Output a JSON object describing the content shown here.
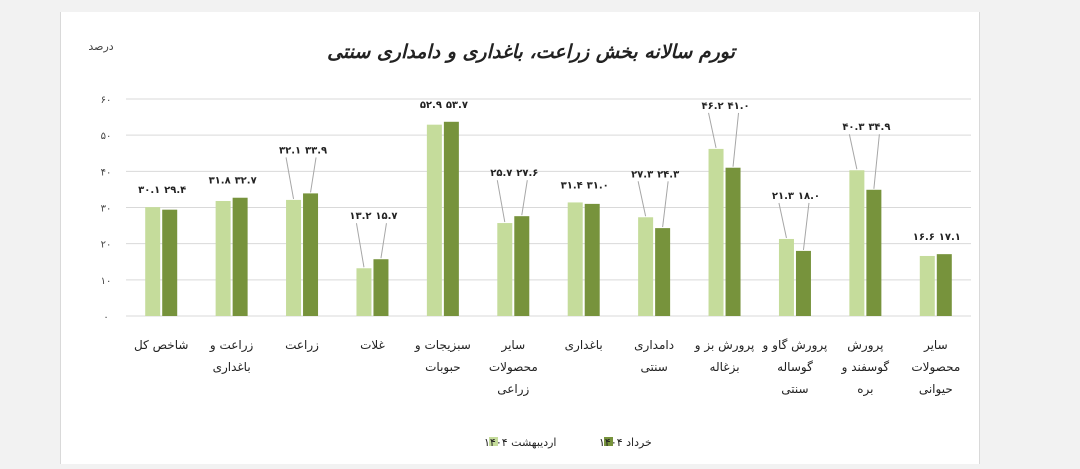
{
  "chart_data": {
    "type": "bar",
    "title": "تورم سالانه بخش زراعت، باغداری و دامداری سنتی",
    "ylabel": "درصد",
    "ylim": [
      0,
      60
    ],
    "yticks": [
      "۰",
      "۱۰",
      "۲۰",
      "۳۰",
      "۴۰",
      "۵۰",
      "۶۰"
    ],
    "grid": true,
    "legend_position": "bottom",
    "categories": [
      [
        "شاخص کل"
      ],
      [
        "زراعت و",
        "باغداری"
      ],
      [
        "زراعت"
      ],
      [
        "غلات"
      ],
      [
        "سبزیجات و",
        "حبوبات"
      ],
      [
        "سایر",
        "محصولات",
        "زراعی"
      ],
      [
        "باغداری"
      ],
      [
        "دامداری",
        "سنتی"
      ],
      [
        "پرورش بز و",
        "بزغاله"
      ],
      [
        "پرورش گاو و",
        "گوساله",
        "سنتی"
      ],
      [
        "پرورش",
        "گوسفند و",
        "بره"
      ],
      [
        "سایر",
        "محصولات",
        "حیوانی"
      ]
    ],
    "series": [
      {
        "name": "اردیبهشت ۱۴۰۴",
        "color": "#c5dc9b",
        "values": [
          30.1,
          31.8,
          32.1,
          13.2,
          52.9,
          25.7,
          31.4,
          27.3,
          46.2,
          21.3,
          40.3,
          16.6
        ],
        "labels": [
          "۳۰.۱",
          "۳۱.۸",
          "۳۲.۱",
          "۱۳.۲",
          "۵۲.۹",
          "۲۵.۷",
          "۳۱.۴",
          "۲۷.۳",
          "۴۶.۲",
          "۲۱.۳",
          "۴۰.۳",
          "۱۶.۶"
        ]
      },
      {
        "name": "خرداد ۱۴۰۴",
        "color": "#77933c",
        "values": [
          29.4,
          32.7,
          33.9,
          15.7,
          53.7,
          27.6,
          31.0,
          24.3,
          41.0,
          18.0,
          34.9,
          17.1
        ],
        "labels": [
          "۲۹.۴",
          "۳۲.۷",
          "۳۳.۹",
          "۱۵.۷",
          "۵۳.۷",
          "۲۷.۶",
          "۳۱.۰",
          "۲۴.۳",
          "۴۱.۰",
          "۱۸.۰",
          "۳۴.۹",
          "۱۷.۱"
        ]
      }
    ]
  }
}
